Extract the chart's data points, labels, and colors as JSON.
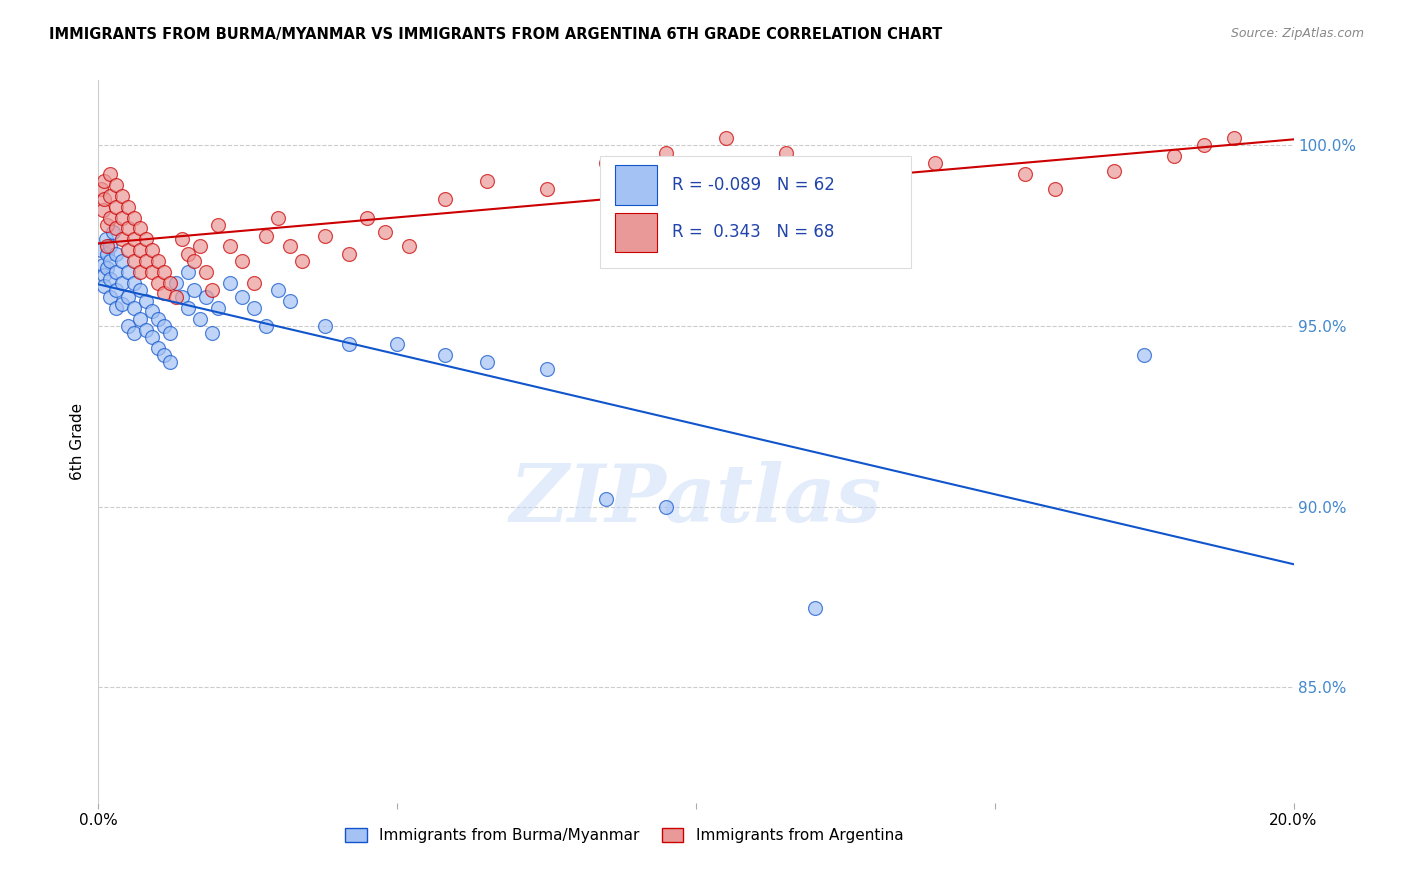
{
  "title": "IMMIGRANTS FROM BURMA/MYANMAR VS IMMIGRANTS FROM ARGENTINA 6TH GRADE CORRELATION CHART",
  "source": "Source: ZipAtlas.com",
  "ylabel": "6th Grade",
  "y_axis_labels": [
    "85.0%",
    "90.0%",
    "95.0%",
    "100.0%"
  ],
  "y_axis_values": [
    0.85,
    0.9,
    0.95,
    1.0
  ],
  "xlim": [
    0.0,
    0.2
  ],
  "ylim": [
    0.818,
    1.018
  ],
  "legend_blue_r": "-0.089",
  "legend_blue_n": "62",
  "legend_pink_r": "0.343",
  "legend_pink_n": "68",
  "blue_color": "#a4c2f4",
  "pink_color": "#ea9999",
  "blue_line_color": "#1155cc",
  "pink_line_color": "#cc0000",
  "watermark": "ZIPatlas",
  "blue_x": [
    0.0005,
    0.0008,
    0.001,
    0.001,
    0.0012,
    0.0015,
    0.0015,
    0.002,
    0.002,
    0.002,
    0.002,
    0.0025,
    0.003,
    0.003,
    0.003,
    0.003,
    0.004,
    0.004,
    0.004,
    0.005,
    0.005,
    0.005,
    0.006,
    0.006,
    0.006,
    0.007,
    0.007,
    0.008,
    0.008,
    0.009,
    0.009,
    0.01,
    0.01,
    0.011,
    0.011,
    0.012,
    0.012,
    0.013,
    0.014,
    0.015,
    0.015,
    0.016,
    0.017,
    0.018,
    0.019,
    0.02,
    0.022,
    0.024,
    0.026,
    0.028,
    0.03,
    0.032,
    0.038,
    0.042,
    0.05,
    0.058,
    0.065,
    0.075,
    0.085,
    0.095,
    0.12,
    0.175
  ],
  "blue_y": [
    0.971,
    0.967,
    0.964,
    0.961,
    0.974,
    0.97,
    0.966,
    0.972,
    0.968,
    0.963,
    0.958,
    0.976,
    0.97,
    0.965,
    0.96,
    0.955,
    0.968,
    0.962,
    0.956,
    0.965,
    0.958,
    0.95,
    0.962,
    0.955,
    0.948,
    0.96,
    0.952,
    0.957,
    0.949,
    0.954,
    0.947,
    0.952,
    0.944,
    0.95,
    0.942,
    0.948,
    0.94,
    0.962,
    0.958,
    0.965,
    0.955,
    0.96,
    0.952,
    0.958,
    0.948,
    0.955,
    0.962,
    0.958,
    0.955,
    0.95,
    0.96,
    0.957,
    0.95,
    0.945,
    0.945,
    0.942,
    0.94,
    0.938,
    0.902,
    0.9,
    0.872,
    0.942
  ],
  "pink_x": [
    0.0005,
    0.0008,
    0.001,
    0.001,
    0.0015,
    0.0015,
    0.002,
    0.002,
    0.002,
    0.003,
    0.003,
    0.003,
    0.004,
    0.004,
    0.004,
    0.005,
    0.005,
    0.005,
    0.006,
    0.006,
    0.006,
    0.007,
    0.007,
    0.007,
    0.008,
    0.008,
    0.009,
    0.009,
    0.01,
    0.01,
    0.011,
    0.011,
    0.012,
    0.013,
    0.014,
    0.015,
    0.016,
    0.017,
    0.018,
    0.019,
    0.02,
    0.022,
    0.024,
    0.026,
    0.028,
    0.03,
    0.032,
    0.034,
    0.038,
    0.042,
    0.045,
    0.048,
    0.052,
    0.058,
    0.065,
    0.075,
    0.085,
    0.095,
    0.105,
    0.115,
    0.125,
    0.14,
    0.155,
    0.16,
    0.17,
    0.18,
    0.185,
    0.19
  ],
  "pink_y": [
    0.988,
    0.982,
    0.99,
    0.985,
    0.978,
    0.972,
    0.992,
    0.986,
    0.98,
    0.989,
    0.983,
    0.977,
    0.986,
    0.98,
    0.974,
    0.983,
    0.977,
    0.971,
    0.98,
    0.974,
    0.968,
    0.977,
    0.971,
    0.965,
    0.974,
    0.968,
    0.971,
    0.965,
    0.968,
    0.962,
    0.965,
    0.959,
    0.962,
    0.958,
    0.974,
    0.97,
    0.968,
    0.972,
    0.965,
    0.96,
    0.978,
    0.972,
    0.968,
    0.962,
    0.975,
    0.98,
    0.972,
    0.968,
    0.975,
    0.97,
    0.98,
    0.976,
    0.972,
    0.985,
    0.99,
    0.988,
    0.995,
    0.998,
    1.002,
    0.998,
    0.993,
    0.995,
    0.992,
    0.988,
    0.993,
    0.997,
    1.0,
    1.002
  ]
}
